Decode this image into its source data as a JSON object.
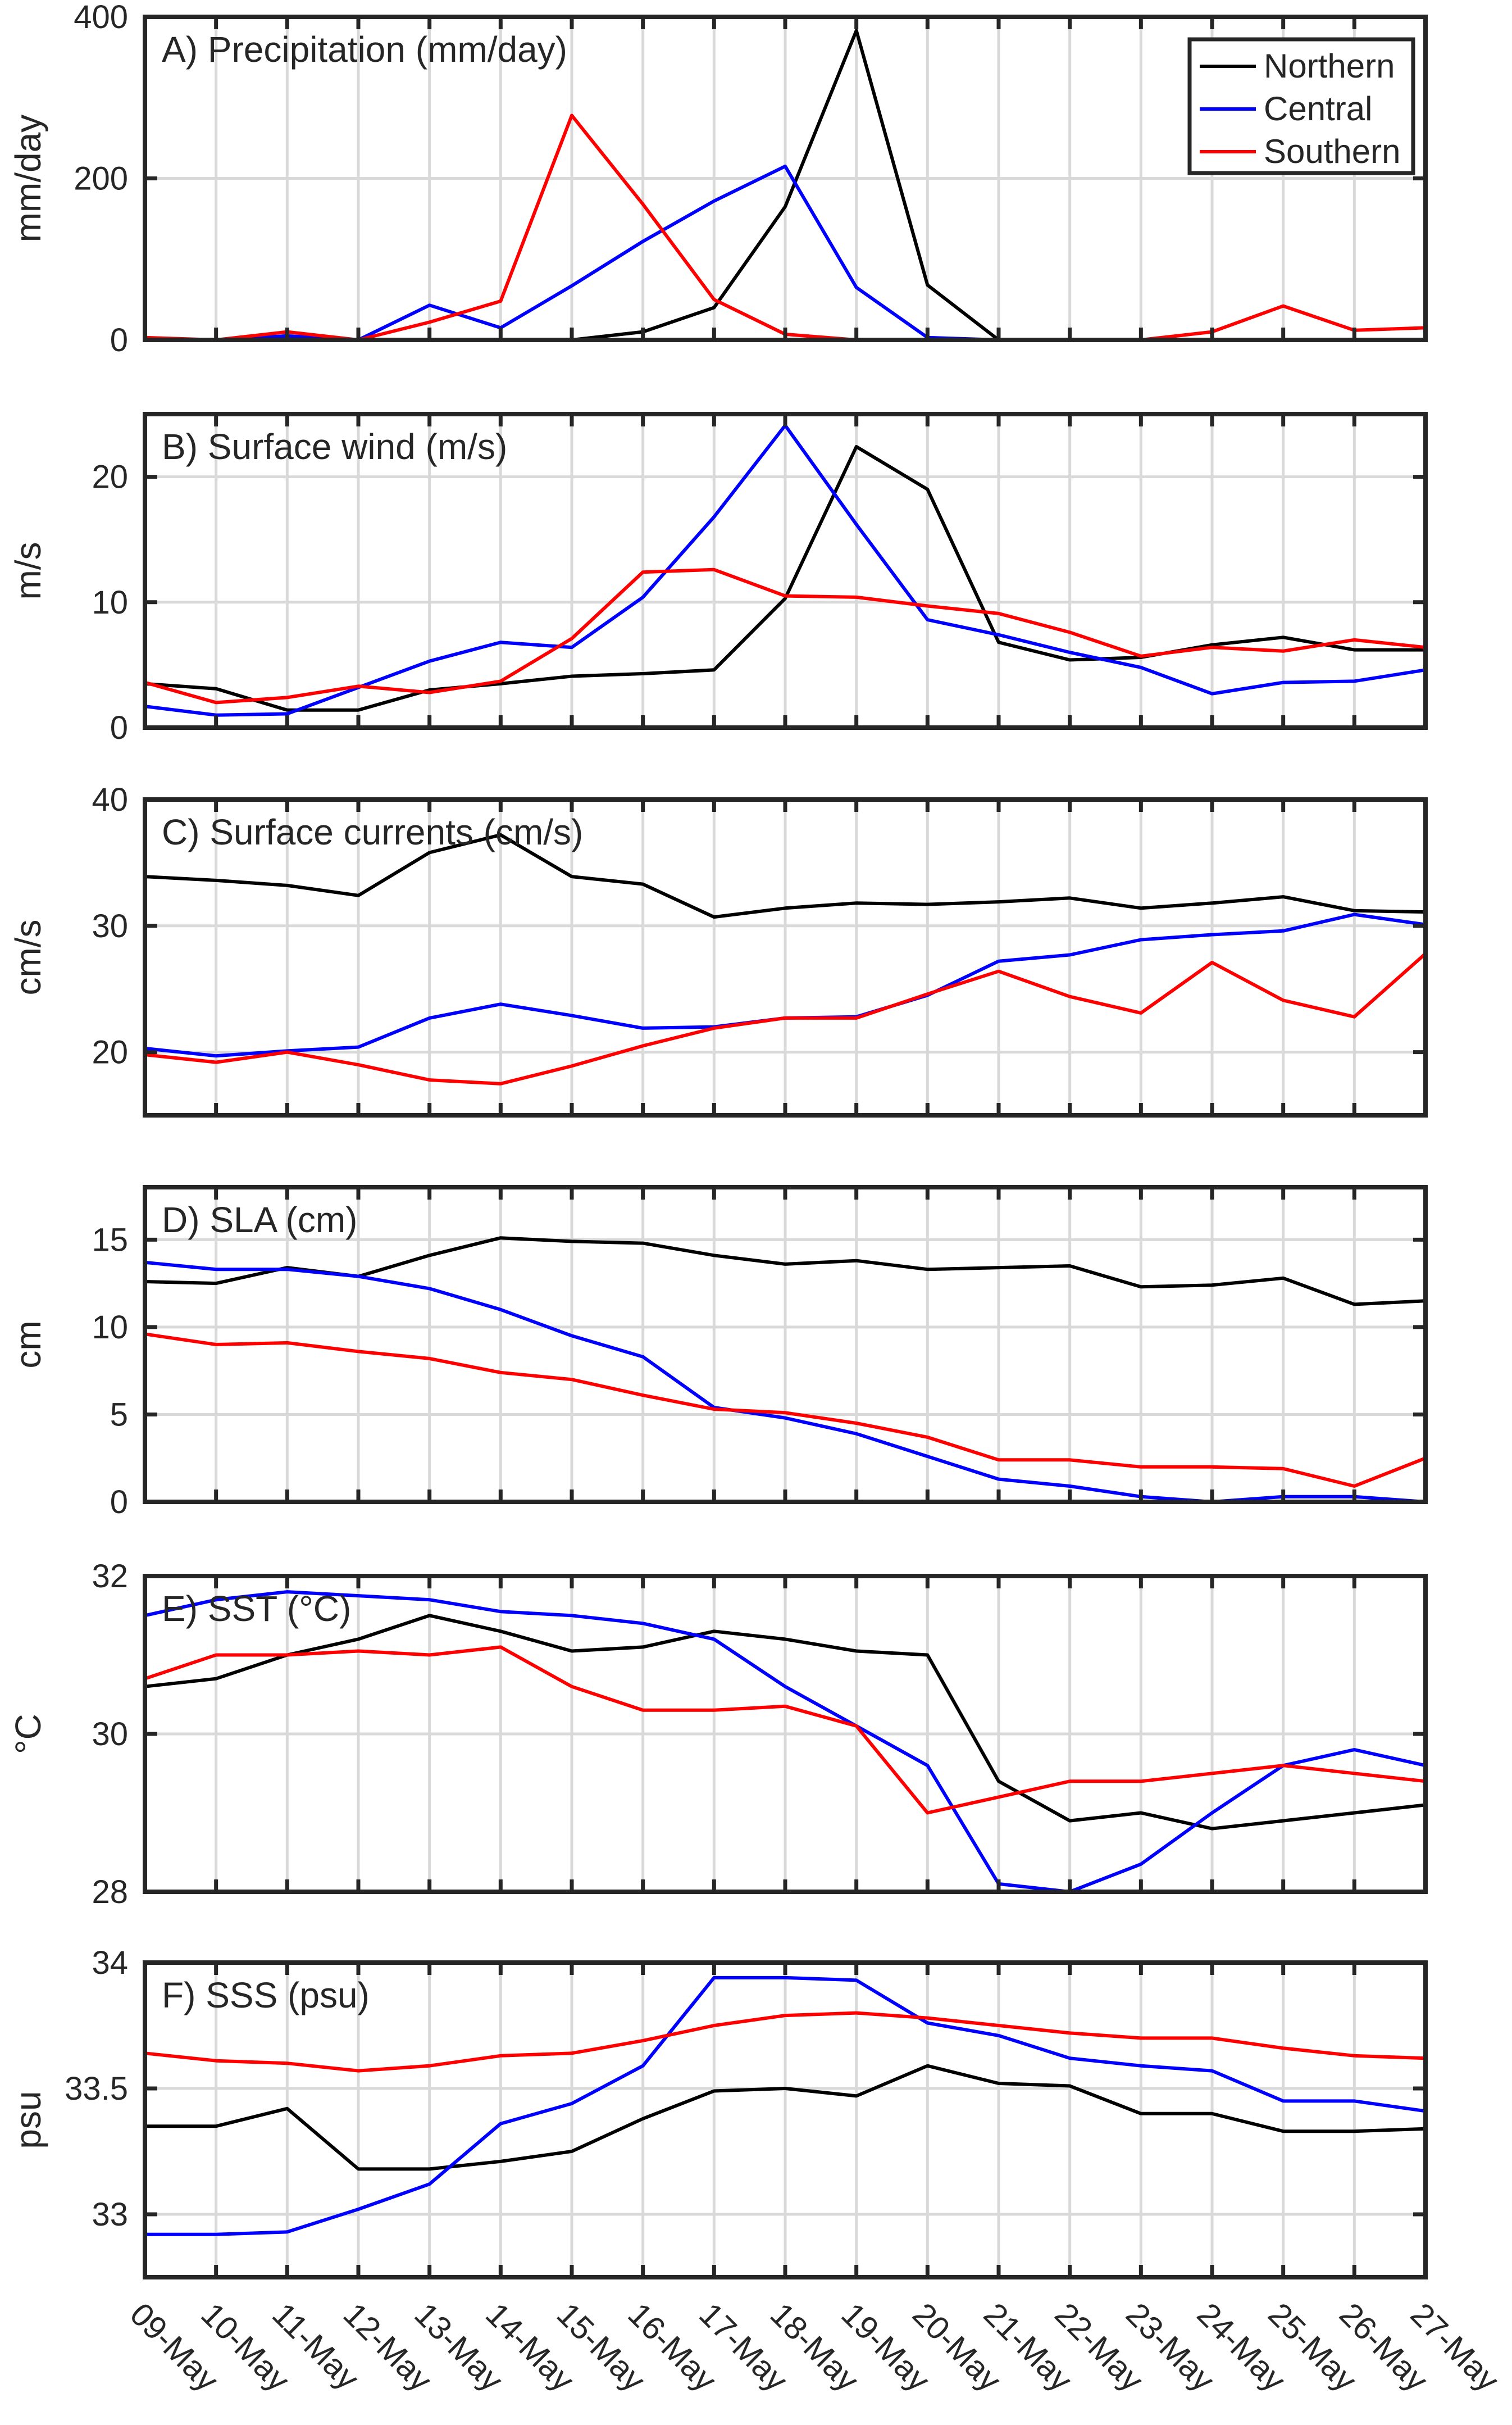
{
  "colors": {
    "Northern": "#000000",
    "Central": "#0000ff",
    "Southern": "#ff0000",
    "axis": "#262626",
    "grid": "#d9d9d9"
  },
  "chart_data": {
    "type": "line",
    "categories": [
      "09-May",
      "10-May",
      "11-May",
      "12-May",
      "13-May",
      "14-May",
      "15-May",
      "16-May",
      "17-May",
      "18-May",
      "19-May",
      "20-May",
      "21-May",
      "22-May",
      "23-May",
      "24-May",
      "25-May",
      "26-May",
      "27-May"
    ],
    "legend": {
      "entries": [
        "Northern",
        "Central",
        "Southern"
      ],
      "placement": "top-right"
    },
    "panels": [
      {
        "title": "A) Precipitation (mm/day)",
        "ylabel": "mm/day",
        "ylim": [
          0,
          400
        ],
        "yticks": [
          0,
          200,
          400
        ],
        "ytick_labels": [
          "0",
          "200",
          "400"
        ],
        "series": [
          {
            "name": "Northern",
            "values": [
              0,
              0,
              0,
              0,
              0,
              0,
              0,
              10,
              40,
              165,
              383,
              68,
              0,
              0,
              0,
              0,
              0,
              0,
              0
            ]
          },
          {
            "name": "Central",
            "values": [
              0,
              0,
              5,
              0,
              43,
              15,
              67,
              122,
              172,
              215,
              65,
              3,
              0,
              0,
              0,
              0,
              0,
              0,
              0
            ]
          },
          {
            "name": "Southern",
            "values": [
              3,
              0,
              10,
              0,
              22,
              48,
              278,
              168,
              50,
              7,
              0,
              0,
              0,
              0,
              0,
              10,
              42,
              12,
              15
            ]
          }
        ]
      },
      {
        "title": "B) Surface wind (m/s)",
        "ylabel": "m/s",
        "ylim": [
          0,
          25
        ],
        "yticks": [
          0,
          10,
          20
        ],
        "ytick_labels": [
          "0",
          "10",
          "20"
        ],
        "series": [
          {
            "name": "Northern",
            "values": [
              3.5,
              3.1,
              1.4,
              1.4,
              3.0,
              3.5,
              4.1,
              4.3,
              4.6,
              10.3,
              22.4,
              19.0,
              6.8,
              5.4,
              5.6,
              6.6,
              7.2,
              6.2,
              6.2
            ]
          },
          {
            "name": "Central",
            "values": [
              1.7,
              1.0,
              1.1,
              3.2,
              5.3,
              6.8,
              6.4,
              10.4,
              16.8,
              24.1,
              16.2,
              8.6,
              7.4,
              6.0,
              4.8,
              2.7,
              3.6,
              3.7,
              4.6
            ]
          },
          {
            "name": "Southern",
            "values": [
              3.6,
              2.0,
              2.4,
              3.3,
              2.8,
              3.7,
              7.1,
              12.4,
              12.6,
              10.5,
              10.4,
              9.7,
              9.1,
              7.6,
              5.7,
              6.4,
              6.1,
              7.0,
              6.4
            ]
          }
        ]
      },
      {
        "title": "C) Surface currents (cm/s)",
        "ylabel": "cm/s",
        "ylim": [
          15,
          40
        ],
        "yticks": [
          20,
          30,
          40
        ],
        "ytick_labels": [
          "20",
          "30",
          "40"
        ],
        "series": [
          {
            "name": "Northern",
            "values": [
              33.9,
              33.6,
              33.2,
              32.4,
              35.8,
              37.2,
              33.9,
              33.3,
              30.7,
              31.4,
              31.8,
              31.7,
              31.9,
              32.2,
              31.4,
              31.8,
              32.3,
              31.2,
              31.1
            ]
          },
          {
            "name": "Central",
            "values": [
              20.3,
              19.7,
              20.1,
              20.4,
              22.7,
              23.8,
              22.9,
              21.9,
              22.0,
              22.7,
              22.8,
              24.5,
              27.2,
              27.7,
              28.9,
              29.3,
              29.6,
              30.9,
              30.1
            ]
          },
          {
            "name": "Southern",
            "values": [
              19.8,
              19.2,
              20.0,
              19.0,
              17.8,
              17.5,
              18.9,
              20.5,
              21.9,
              22.7,
              22.7,
              24.6,
              26.4,
              24.4,
              23.1,
              27.1,
              24.1,
              22.8,
              27.8
            ]
          }
        ]
      },
      {
        "title": "D) SLA (cm)",
        "ylabel": "cm",
        "ylim": [
          0,
          18
        ],
        "yticks": [
          0,
          5,
          10,
          15
        ],
        "ytick_labels": [
          "0",
          "5",
          "10",
          "15"
        ],
        "series": [
          {
            "name": "Northern",
            "values": [
              12.6,
              12.5,
              13.4,
              12.9,
              14.1,
              15.1,
              14.9,
              14.8,
              14.1,
              13.6,
              13.8,
              13.3,
              13.4,
              13.5,
              12.3,
              12.4,
              12.8,
              11.3,
              11.5
            ]
          },
          {
            "name": "Central",
            "values": [
              13.7,
              13.3,
              13.3,
              12.9,
              12.2,
              11.0,
              9.5,
              8.3,
              5.4,
              4.8,
              3.9,
              2.6,
              1.3,
              0.9,
              0.3,
              0.0,
              0.3,
              0.3,
              0.0
            ]
          },
          {
            "name": "Southern",
            "values": [
              9.6,
              9.0,
              9.1,
              8.6,
              8.2,
              7.4,
              7.0,
              6.1,
              5.3,
              5.1,
              4.5,
              3.7,
              2.4,
              2.4,
              2.0,
              2.0,
              1.9,
              0.9,
              2.5
            ]
          }
        ]
      },
      {
        "title": "E) SST (°C)",
        "ylabel": "°C",
        "ylim": [
          28,
          32
        ],
        "yticks": [
          28,
          30,
          32
        ],
        "ytick_labels": [
          "28",
          "30",
          "32"
        ],
        "series": [
          {
            "name": "Northern",
            "values": [
              30.6,
              30.7,
              31.0,
              31.2,
              31.5,
              31.3,
              31.05,
              31.1,
              31.3,
              31.2,
              31.05,
              31.0,
              29.4,
              28.9,
              29.0,
              28.8,
              28.9,
              29.0,
              29.1
            ]
          },
          {
            "name": "Central",
            "values": [
              31.5,
              31.7,
              31.8,
              31.75,
              31.7,
              31.55,
              31.5,
              31.4,
              31.2,
              30.6,
              30.1,
              29.6,
              28.1,
              28.0,
              28.35,
              29.0,
              29.6,
              29.8,
              29.6
            ]
          },
          {
            "name": "Southern",
            "values": [
              30.7,
              31.0,
              31.0,
              31.05,
              31.0,
              31.1,
              30.6,
              30.3,
              30.3,
              30.35,
              30.1,
              29.0,
              29.2,
              29.4,
              29.4,
              29.5,
              29.6,
              29.5,
              29.4
            ]
          }
        ]
      },
      {
        "title": "F) SSS (psu)",
        "ylabel": "psu",
        "ylim": [
          32.75,
          34.0
        ],
        "yticks": [
          33,
          33.5,
          34
        ],
        "ytick_labels": [
          "33",
          "33.5",
          "34"
        ],
        "series": [
          {
            "name": "Northern",
            "values": [
              33.35,
              33.35,
              33.42,
              33.18,
              33.18,
              33.21,
              33.25,
              33.38,
              33.49,
              33.5,
              33.47,
              33.59,
              33.52,
              33.51,
              33.4,
              33.4,
              33.33,
              33.33,
              33.34
            ]
          },
          {
            "name": "Central",
            "values": [
              32.92,
              32.92,
              32.93,
              33.02,
              33.12,
              33.36,
              33.44,
              33.59,
              33.94,
              33.94,
              33.93,
              33.76,
              33.71,
              33.62,
              33.59,
              33.57,
              33.45,
              33.45,
              33.41
            ]
          },
          {
            "name": "Southern",
            "values": [
              33.64,
              33.61,
              33.6,
              33.57,
              33.59,
              33.63,
              33.64,
              33.69,
              33.75,
              33.79,
              33.8,
              33.78,
              33.75,
              33.72,
              33.7,
              33.7,
              33.66,
              33.63,
              33.62
            ]
          }
        ]
      }
    ]
  }
}
